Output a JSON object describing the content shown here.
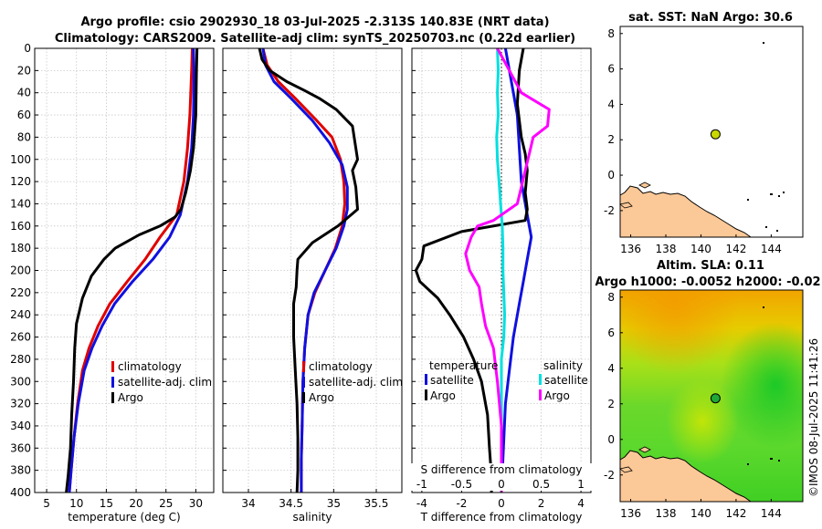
{
  "header": {
    "line1": "Argo profile: csio 2902930_18 03-Jul-2025 -2.313S 140.83E (NRT data)",
    "line2": "Climatology: CARS2009. Satellite-adj clim: synTS_20250703.nc (0.22d earlier)"
  },
  "chart_data": [
    {
      "id": "temperature",
      "type": "line",
      "xlabel": "temperature (deg C)",
      "ylabel": "",
      "xlim": [
        3,
        33
      ],
      "ylim": [
        400,
        0
      ],
      "xticks": [
        5,
        10,
        15,
        20,
        25,
        30
      ],
      "yticks": [
        0,
        20,
        40,
        60,
        80,
        100,
        120,
        140,
        160,
        180,
        200,
        220,
        240,
        260,
        280,
        300,
        320,
        340,
        360,
        380,
        400
      ],
      "grid": true,
      "legend": [
        "climatology",
        "satellite-adj. clim",
        "Argo"
      ],
      "legend_colors": [
        "#e00000",
        "#1010e0",
        "#000000"
      ],
      "series": [
        {
          "name": "climatology",
          "color": "#e00000",
          "points": [
            [
              29.4,
              0
            ],
            [
              29.3,
              20
            ],
            [
              29.0,
              60
            ],
            [
              28.6,
              90
            ],
            [
              28.0,
              120
            ],
            [
              26.8,
              150
            ],
            [
              24.0,
              170
            ],
            [
              21.5,
              190
            ],
            [
              18.5,
              210
            ],
            [
              15.6,
              230
            ],
            [
              13.6,
              250
            ],
            [
              12.1,
              270
            ],
            [
              11.0,
              290
            ],
            [
              10.2,
              320
            ],
            [
              9.6,
              350
            ],
            [
              9.1,
              380
            ],
            [
              8.8,
              400
            ]
          ]
        },
        {
          "name": "satellite-adj. clim",
          "color": "#1010e0",
          "points": [
            [
              29.6,
              0
            ],
            [
              29.7,
              20
            ],
            [
              29.6,
              60
            ],
            [
              29.3,
              90
            ],
            [
              28.6,
              120
            ],
            [
              27.4,
              150
            ],
            [
              25.6,
              170
            ],
            [
              22.8,
              190
            ],
            [
              19.4,
              210
            ],
            [
              16.4,
              230
            ],
            [
              14.3,
              250
            ],
            [
              12.6,
              270
            ],
            [
              11.3,
              290
            ],
            [
              10.3,
              320
            ],
            [
              9.6,
              350
            ],
            [
              9.1,
              380
            ],
            [
              8.8,
              400
            ]
          ]
        },
        {
          "name": "Argo",
          "color": "#000000",
          "points": [
            [
              30.2,
              0
            ],
            [
              30.1,
              20
            ],
            [
              30.0,
              60
            ],
            [
              29.6,
              90
            ],
            [
              29.1,
              110
            ],
            [
              28.3,
              130
            ],
            [
              27.5,
              145
            ],
            [
              26.5,
              152
            ],
            [
              24.0,
              160
            ],
            [
              20.5,
              168
            ],
            [
              16.5,
              180
            ],
            [
              14.6,
              190
            ],
            [
              12.5,
              205
            ],
            [
              11.0,
              225
            ],
            [
              10.0,
              248
            ],
            [
              9.7,
              270
            ],
            [
              9.5,
              300
            ],
            [
              9.2,
              330
            ],
            [
              9.0,
              360
            ],
            [
              8.6,
              385
            ],
            [
              8.3,
              400
            ]
          ]
        }
      ]
    },
    {
      "id": "salinity",
      "type": "line",
      "xlabel": "salinity",
      "ylabel": "",
      "xlim": [
        33.7,
        35.8
      ],
      "ylim": [
        400,
        0
      ],
      "xticks": [
        34,
        34.5,
        35,
        35.5
      ],
      "grid": true,
      "legend": [
        "climatology",
        "satellite-adj. clim",
        "Argo"
      ],
      "legend_colors": [
        "#e00000",
        "#1010e0",
        "#000000"
      ],
      "series": [
        {
          "name": "climatology",
          "color": "#e00000",
          "points": [
            [
              34.17,
              0
            ],
            [
              34.22,
              15
            ],
            [
              34.35,
              30
            ],
            [
              34.55,
              45
            ],
            [
              34.8,
              65
            ],
            [
              34.98,
              80
            ],
            [
              35.08,
              100
            ],
            [
              35.12,
              120
            ],
            [
              35.13,
              140
            ],
            [
              35.1,
              160
            ],
            [
              35.02,
              180
            ],
            [
              34.9,
              200
            ],
            [
              34.78,
              220
            ],
            [
              34.7,
              240
            ],
            [
              34.66,
              270
            ],
            [
              34.64,
              300
            ],
            [
              34.63,
              340
            ],
            [
              34.62,
              370
            ],
            [
              34.62,
              400
            ]
          ]
        },
        {
          "name": "satellite-adj. clim",
          "color": "#1010e0",
          "points": [
            [
              34.17,
              0
            ],
            [
              34.2,
              15
            ],
            [
              34.3,
              30
            ],
            [
              34.5,
              45
            ],
            [
              34.75,
              65
            ],
            [
              34.95,
              85
            ],
            [
              35.1,
              105
            ],
            [
              35.16,
              125
            ],
            [
              35.16,
              145
            ],
            [
              35.12,
              160
            ],
            [
              35.03,
              180
            ],
            [
              34.9,
              200
            ],
            [
              34.77,
              220
            ],
            [
              34.7,
              240
            ],
            [
              34.66,
              270
            ],
            [
              34.64,
              300
            ],
            [
              34.63,
              340
            ],
            [
              34.62,
              370
            ],
            [
              34.62,
              400
            ]
          ]
        },
        {
          "name": "Argo",
          "color": "#000000",
          "points": [
            [
              34.13,
              0
            ],
            [
              34.16,
              10
            ],
            [
              34.25,
              20
            ],
            [
              34.45,
              30
            ],
            [
              34.66,
              38
            ],
            [
              34.83,
              45
            ],
            [
              35.03,
              55
            ],
            [
              35.22,
              70
            ],
            [
              35.25,
              85
            ],
            [
              35.28,
              100
            ],
            [
              35.22,
              110
            ],
            [
              35.26,
              125
            ],
            [
              35.28,
              145
            ],
            [
              35.05,
              160
            ],
            [
              34.75,
              175
            ],
            [
              34.58,
              190
            ],
            [
              34.57,
              200
            ],
            [
              34.56,
              215
            ],
            [
              34.53,
              230
            ],
            [
              34.53,
              260
            ],
            [
              34.55,
              290
            ],
            [
              34.57,
              320
            ],
            [
              34.58,
              350
            ],
            [
              34.58,
              380
            ],
            [
              34.57,
              400
            ]
          ]
        }
      ]
    },
    {
      "id": "difference",
      "type": "line",
      "xlabel": "T difference from climatology",
      "x2label": "S difference from climatology",
      "xlim": [
        -4.5,
        4.5
      ],
      "x2lim": [
        -1.125,
        1.125
      ],
      "ylim": [
        400,
        0
      ],
      "xticks": [
        -4,
        -2,
        0,
        2,
        4
      ],
      "x2ticks": [
        -1,
        -0.5,
        0,
        0.5,
        1
      ],
      "x2ticklabels": [
        "-1",
        "-0.5",
        "0",
        "0.5",
        "1"
      ],
      "grid": true,
      "legend_temp_title": "temperature",
      "legend_sal_title": "salinity",
      "legend_temp": [
        "satellite",
        "Argo"
      ],
      "legend_sal": [
        "satellite",
        "Argo"
      ],
      "legend_colors_temp": [
        "#1010e0",
        "#000000"
      ],
      "legend_colors_sal": [
        "#00e0e0",
        "#ff00ff"
      ],
      "series": [
        {
          "name": "T satellite",
          "color": "#1010e0",
          "axis": "T",
          "points": [
            [
              0.2,
              0
            ],
            [
              0.4,
              20
            ],
            [
              0.6,
              40
            ],
            [
              0.8,
              60
            ],
            [
              0.9,
              90
            ],
            [
              1.0,
              120
            ],
            [
              1.3,
              150
            ],
            [
              1.5,
              170
            ],
            [
              1.3,
              190
            ],
            [
              1.1,
              210
            ],
            [
              0.9,
              230
            ],
            [
              0.6,
              260
            ],
            [
              0.4,
              290
            ],
            [
              0.2,
              320
            ],
            [
              0.1,
              360
            ],
            [
              0.0,
              400
            ]
          ]
        },
        {
          "name": "T Argo",
          "color": "#000000",
          "axis": "T",
          "points": [
            [
              1.1,
              0
            ],
            [
              0.9,
              20
            ],
            [
              0.8,
              50
            ],
            [
              1.0,
              80
            ],
            [
              1.2,
              95
            ],
            [
              1.3,
              110
            ],
            [
              1.2,
              130
            ],
            [
              1.3,
              145
            ],
            [
              1.2,
              155
            ],
            [
              -2.0,
              165
            ],
            [
              -3.9,
              178
            ],
            [
              -4.0,
              190
            ],
            [
              -4.3,
              200
            ],
            [
              -4.1,
              210
            ],
            [
              -3.2,
              225
            ],
            [
              -2.6,
              240
            ],
            [
              -1.9,
              260
            ],
            [
              -1.4,
              280
            ],
            [
              -1.0,
              300
            ],
            [
              -0.7,
              330
            ],
            [
              -0.6,
              360
            ],
            [
              -0.5,
              385
            ],
            [
              -0.5,
              400
            ]
          ]
        },
        {
          "name": "S satellite",
          "color": "#00e0e0",
          "axis": "S",
          "points": [
            [
              -0.05,
              0
            ],
            [
              -0.04,
              20
            ],
            [
              -0.05,
              40
            ],
            [
              -0.04,
              60
            ],
            [
              -0.06,
              80
            ],
            [
              -0.05,
              100
            ],
            [
              -0.03,
              120
            ],
            [
              -0.01,
              140
            ],
            [
              0.01,
              160
            ],
            [
              0.02,
              180
            ],
            [
              0.02,
              200
            ],
            [
              0.03,
              220
            ],
            [
              0.04,
              240
            ],
            [
              0.03,
              260
            ],
            [
              0.0,
              280
            ],
            [
              0.0,
              300
            ],
            [
              0.0,
              340
            ],
            [
              0.0,
              400
            ]
          ]
        },
        {
          "name": "S Argo",
          "color": "#ff00ff",
          "axis": "S",
          "points": [
            [
              -0.05,
              0
            ],
            [
              0.1,
              20
            ],
            [
              0.25,
              40
            ],
            [
              0.6,
              55
            ],
            [
              0.58,
              70
            ],
            [
              0.4,
              80
            ],
            [
              0.35,
              95
            ],
            [
              0.3,
              110
            ],
            [
              0.25,
              125
            ],
            [
              0.2,
              140
            ],
            [
              -0.1,
              155
            ],
            [
              -0.3,
              160
            ],
            [
              -0.38,
              170
            ],
            [
              -0.45,
              185
            ],
            [
              -0.4,
              200
            ],
            [
              -0.28,
              215
            ],
            [
              -0.25,
              230
            ],
            [
              -0.2,
              250
            ],
            [
              -0.1,
              270
            ],
            [
              -0.05,
              300
            ],
            [
              0.0,
              340
            ],
            [
              0.0,
              400
            ]
          ]
        }
      ]
    },
    {
      "id": "sst-map",
      "type": "map",
      "title": "sat. SST: NaN Argo: 30.6",
      "xlim": [
        135.4,
        145.8
      ],
      "ylim": [
        -3.5,
        8.4
      ],
      "xticks": [
        136,
        138,
        140,
        142,
        144
      ],
      "yticks": [
        -2,
        0,
        2,
        4,
        6,
        8
      ],
      "marker": [
        140.83,
        2.313
      ],
      "marker_color": "#c8d800"
    },
    {
      "id": "sla-map",
      "type": "map",
      "title1": "Altim. SLA: 0.11",
      "title2": "Argo h1000: -0.0052 h2000: -0.02",
      "xlim": [
        135.4,
        145.8
      ],
      "ylim": [
        -3.5,
        8.4
      ],
      "xticks": [
        136,
        138,
        140,
        142,
        144
      ],
      "yticks": [
        -2,
        0,
        2,
        4,
        6,
        8
      ],
      "marker": [
        140.83,
        2.313
      ],
      "marker_color": "#1fa838"
    }
  ],
  "watermark": "©IMOS 08-Jul-2025 11:41:26",
  "colors": {
    "land": "#fbc897",
    "sla_low": "#18d020",
    "sla_high": "#f0b000"
  }
}
